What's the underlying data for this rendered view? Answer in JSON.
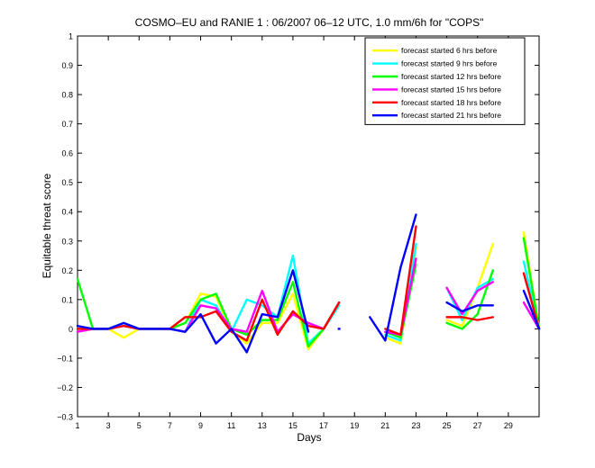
{
  "chart_data": {
    "type": "line",
    "title": "COSMO–EU and RANIE 1 : 06/2007 06–12 UTC, 1.0 mm/6h for \"COPS\"",
    "xlabel": "Days",
    "ylabel": "Equitable threat score",
    "xlim": [
      1,
      31
    ],
    "ylim": [
      -0.3,
      1
    ],
    "x_ticks": [
      1,
      3,
      5,
      7,
      9,
      11,
      13,
      15,
      17,
      19,
      21,
      23,
      25,
      27,
      29
    ],
    "y_ticks": [
      -0.3,
      -0.2,
      -0.1,
      0,
      0.1,
      0.2,
      0.3,
      0.4,
      0.5,
      0.6,
      0.7,
      0.8,
      0.9,
      1
    ],
    "y_tick_labels": [
      "−0.3",
      "−0.2",
      "−0.1",
      "0",
      "0.1",
      "0.2",
      "0.3",
      "0.4",
      "0.5",
      "0.6",
      "0.7",
      "0.8",
      "0.9",
      "1"
    ],
    "grid": false,
    "legend_position": "top-right",
    "x": [
      1,
      2,
      3,
      4,
      5,
      6,
      7,
      8,
      9,
      10,
      11,
      12,
      13,
      14,
      15,
      16,
      17,
      18,
      19,
      20,
      21,
      22,
      23,
      24,
      25,
      26,
      27,
      28,
      29,
      30,
      31
    ],
    "series": [
      {
        "name": "forecast started 6 hrs before",
        "color": "#ffff00",
        "values": [
          0.0,
          0.0,
          0.0,
          -0.03,
          0.0,
          0.0,
          0.0,
          0.02,
          0.12,
          0.11,
          -0.01,
          -0.05,
          0.02,
          0.02,
          0.12,
          -0.07,
          0.0,
          0.08,
          null,
          null,
          -0.03,
          -0.05,
          0.28,
          null,
          0.03,
          0.01,
          0.14,
          0.29,
          null,
          0.33,
          0.0
        ]
      },
      {
        "name": "forecast started 9 hrs before",
        "color": "#00ffff",
        "values": [
          0.0,
          0.0,
          0.0,
          0.02,
          0.0,
          0.0,
          0.0,
          -0.01,
          0.1,
          0.08,
          -0.01,
          0.1,
          0.08,
          0.04,
          0.25,
          -0.05,
          0.0,
          0.08,
          null,
          null,
          -0.02,
          -0.04,
          0.29,
          null,
          0.14,
          0.03,
          0.14,
          0.17,
          null,
          0.23,
          0.0
        ]
      },
      {
        "name": "forecast started 12 hrs before",
        "color": "#00ff00",
        "values": [
          0.17,
          0.0,
          0.0,
          0.01,
          0.0,
          0.0,
          0.0,
          0.02,
          0.1,
          0.12,
          0.0,
          -0.02,
          0.03,
          0.03,
          0.16,
          -0.06,
          0.0,
          0.09,
          null,
          null,
          -0.01,
          -0.03,
          0.22,
          null,
          0.02,
          0.0,
          0.05,
          0.2,
          null,
          0.31,
          0.0
        ]
      },
      {
        "name": "forecast started 15 hrs before",
        "color": "#ff00ff",
        "values": [
          -0.01,
          0.0,
          0.0,
          0.01,
          0.0,
          0.0,
          0.0,
          -0.01,
          0.08,
          0.07,
          0.0,
          -0.01,
          0.13,
          -0.01,
          0.05,
          0.02,
          0.0,
          0.09,
          null,
          null,
          -0.01,
          -0.02,
          0.24,
          null,
          0.14,
          0.05,
          0.13,
          0.16,
          null,
          0.09,
          0.0
        ]
      },
      {
        "name": "forecast started 18 hrs before",
        "color": "#ff0000",
        "values": [
          0.0,
          0.0,
          0.0,
          0.01,
          0.0,
          0.0,
          0.0,
          0.04,
          0.04,
          0.06,
          -0.01,
          -0.04,
          0.1,
          -0.02,
          0.06,
          0.01,
          0.0,
          0.09,
          null,
          null,
          0.0,
          -0.02,
          0.35,
          null,
          0.04,
          0.04,
          0.03,
          0.04,
          null,
          0.19,
          0.0
        ]
      },
      {
        "name": "forecast started 21 hrs before",
        "color": "#0000ff",
        "values": [
          0.01,
          0.0,
          0.0,
          0.02,
          0.0,
          0.0,
          0.0,
          -0.01,
          0.05,
          -0.05,
          0.0,
          -0.08,
          0.05,
          0.04,
          0.2,
          -0.01,
          null,
          0.0,
          null,
          0.04,
          -0.04,
          0.21,
          0.39,
          null,
          0.09,
          0.06,
          0.08,
          0.08,
          null,
          0.13,
          0.0
        ]
      }
    ]
  }
}
